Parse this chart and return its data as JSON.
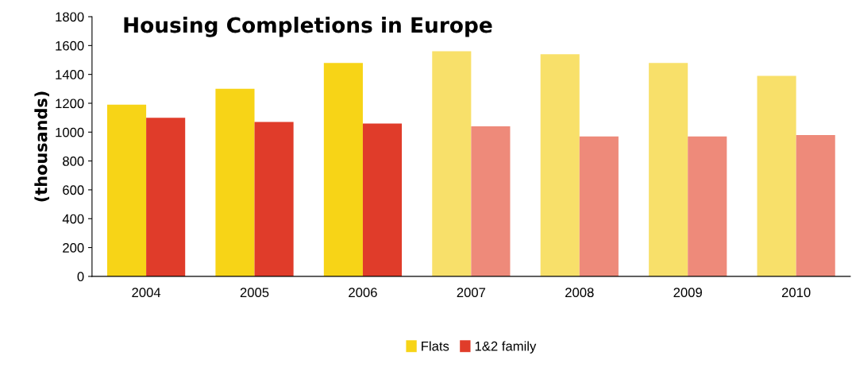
{
  "chart_data": {
    "type": "bar",
    "title": "Housing Completions in Europe",
    "ylabel": "(thousands)",
    "categories": [
      "2004",
      "2005",
      "2006",
      "2007",
      "2008",
      "2009",
      "2010"
    ],
    "series": [
      {
        "name": "Flats",
        "color": "#f7d417",
        "colors": [
          "#f7d417",
          "#f7d417",
          "#f7d417",
          "#f8e06a",
          "#f8e06a",
          "#f8e06a",
          "#f8e06a"
        ],
        "values": [
          1190,
          1300,
          1480,
          1560,
          1540,
          1480,
          1390
        ]
      },
      {
        "name": "1&2 family",
        "color": "#e03c2a",
        "colors": [
          "#e03c2a",
          "#e03c2a",
          "#e03c2a",
          "#ee8a7a",
          "#ee8a7a",
          "#ee8a7a",
          "#ee8a7a"
        ],
        "values": [
          1100,
          1070,
          1060,
          1040,
          970,
          970,
          980
        ]
      }
    ],
    "ylim": [
      0,
      1800
    ],
    "yticks": [
      0,
      200,
      400,
      600,
      800,
      1000,
      1200,
      1400,
      1600,
      1800
    ],
    "grid": false,
    "legend": "bottom"
  }
}
